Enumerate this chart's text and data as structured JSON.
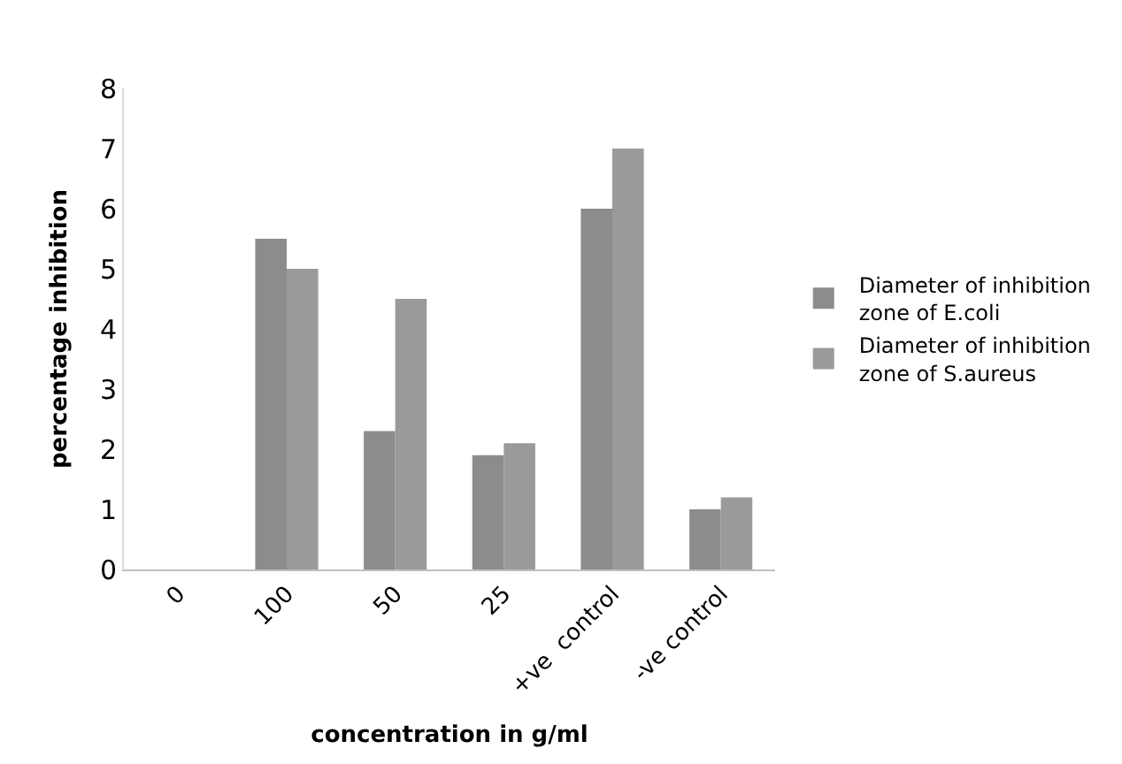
{
  "chart_data": {
    "type": "bar",
    "xlabel": "concentration in g/ml",
    "ylabel": "percentage inhibition",
    "categories": [
      "0",
      "100",
      "50",
      "25",
      "+ve  control",
      "-ve control"
    ],
    "series": [
      {
        "name": "Diameter of inhibition zone of E.coli",
        "color": "#8c8c8c",
        "values": [
          0,
          5.5,
          2.3,
          1.9,
          6.0,
          1.0
        ]
      },
      {
        "name": "Diameter of inhibition zone of S.aureus",
        "color": "#9a9a9a",
        "values": [
          0,
          5.0,
          4.5,
          2.1,
          7.0,
          1.2
        ]
      }
    ],
    "ylim": [
      0,
      8
    ],
    "yticks": [
      0,
      1,
      2,
      3,
      4,
      5,
      6,
      7,
      8
    ],
    "legend": "right"
  }
}
